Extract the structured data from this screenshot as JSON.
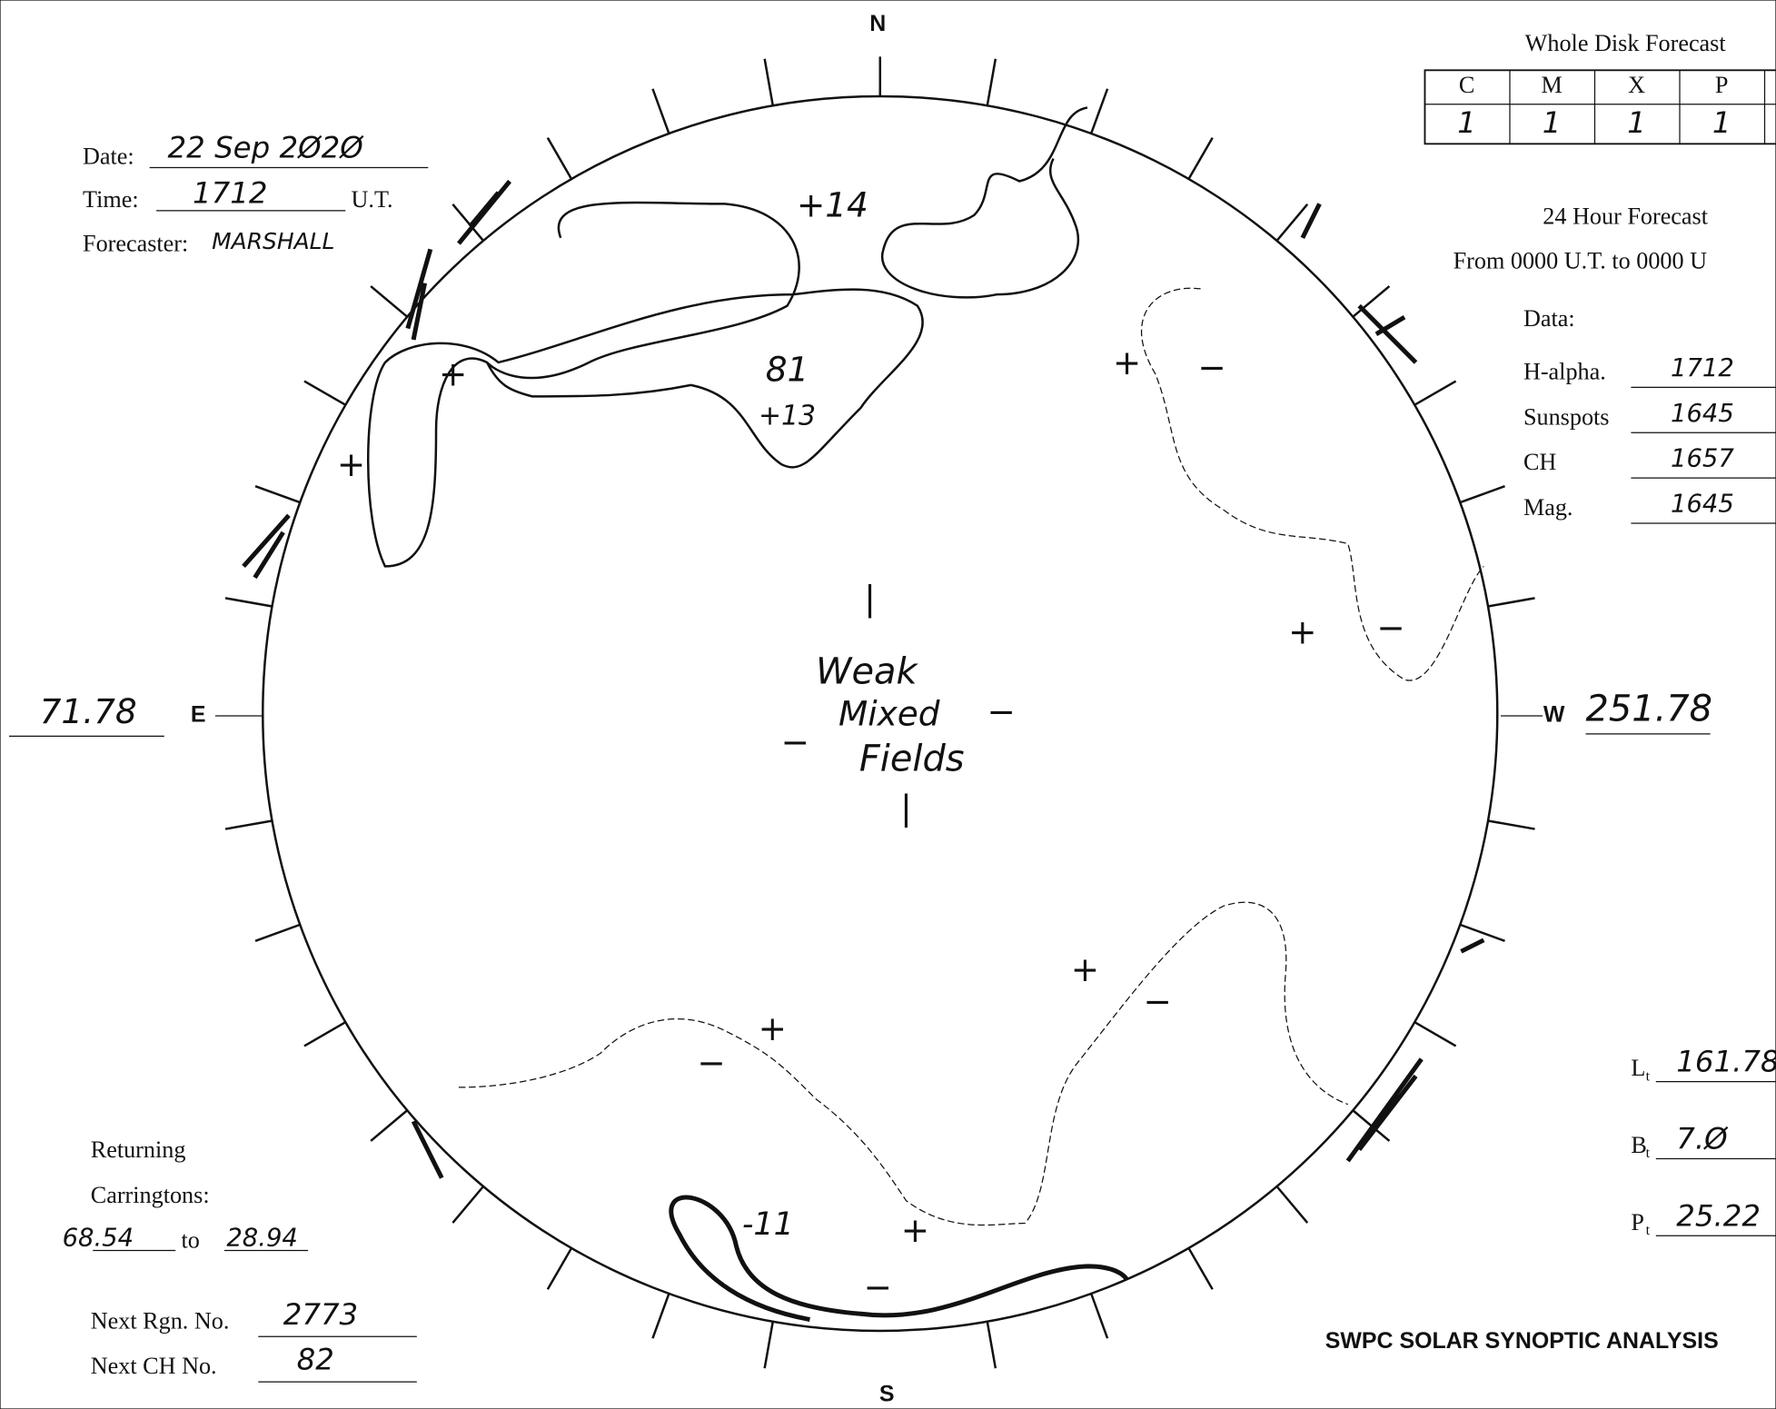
{
  "header": {
    "date_label": "Date:",
    "date": "22 Sep 2Ø2Ø",
    "time_label": "Time:",
    "time": "1712",
    "time_unit": "U.T.",
    "forecaster_label": "Forecaster:",
    "forecaster": "MARSHALL"
  },
  "forecast": {
    "title": "Whole Disk Forecast",
    "columns": [
      "C",
      "M",
      "X",
      "P"
    ],
    "values": [
      "1",
      "1",
      "1",
      "1"
    ],
    "period": "24 Hour Forecast",
    "range": "From 0000 U.T. to 0000 U"
  },
  "data_times": {
    "label": "Data:",
    "rows": [
      {
        "label": "H-alpha.",
        "value": "1712"
      },
      {
        "label": "Sunspots",
        "value": "1645"
      },
      {
        "label": "CH",
        "value": "1657"
      },
      {
        "label": "Mag.",
        "value": "1645"
      }
    ]
  },
  "compass": {
    "north": "N",
    "south": "S",
    "east": "E",
    "west": "W",
    "east_longitude": "71.78",
    "west_longitude": "251.78"
  },
  "carringtons": {
    "line1": "Returning",
    "line2": "Carringtons:",
    "from": "68.54",
    "to_label": "to",
    "to": "28.94"
  },
  "next": {
    "region_label": "Next Rgn. No.",
    "region": "2773",
    "ch_label": "Next CH No.",
    "ch": "82"
  },
  "orientation": [
    {
      "label": "L",
      "sub": "t",
      "value": "161.78"
    },
    {
      "label": "B",
      "sub": "t",
      "value": "7.Ø"
    },
    {
      "label": "P",
      "sub": "t",
      "value": "25.22"
    }
  ],
  "disk_annotations": [
    "+14",
    "81",
    "+13",
    "Weak",
    "Mixed",
    "Fields",
    "-11"
  ],
  "polarity_marks": [
    "+",
    "+",
    "+",
    "−",
    "+",
    "−",
    "−",
    "−",
    "+",
    "−",
    "+",
    "−",
    "+",
    "−",
    "|",
    "|"
  ],
  "footer": "SWPC SOLAR SYNOPTIC ANALYSIS"
}
